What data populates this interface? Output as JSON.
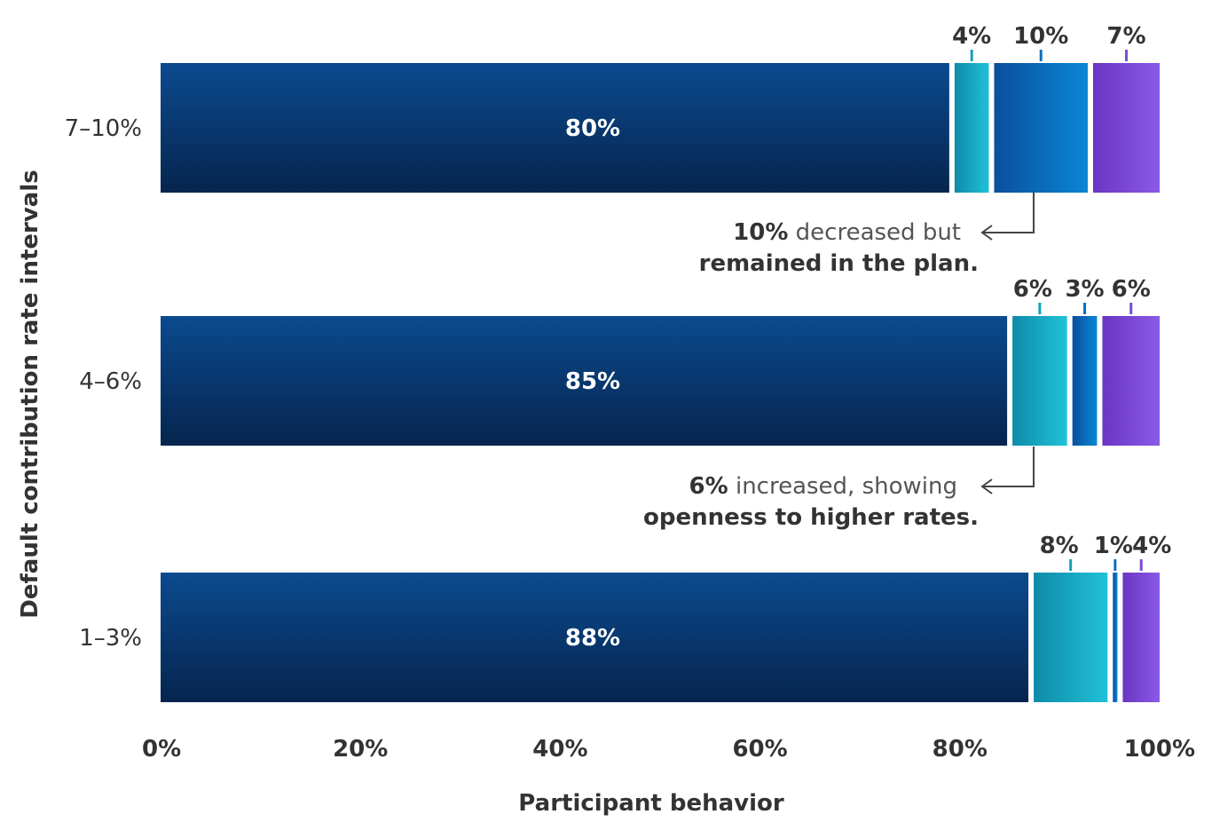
{
  "chart_data": {
    "type": "bar",
    "orientation": "horizontal",
    "stacked": true,
    "xlabel": "Participant behavior",
    "ylabel": "Default contribution rate intervals",
    "xlim": [
      0,
      100
    ],
    "x_ticks": [
      "0%",
      "20%",
      "40%",
      "60%",
      "80%",
      "100%"
    ],
    "categories": [
      "7–10%",
      "4–6%",
      "1–3%"
    ],
    "series": [
      {
        "values": [
          80,
          85,
          88
        ],
        "color": "#0a3a78"
      },
      {
        "values": [
          4,
          6,
          8
        ],
        "color": "#12a6c0"
      },
      {
        "values": [
          10,
          3,
          1
        ],
        "color": "#0a6fc0"
      },
      {
        "values": [
          7,
          6,
          4
        ],
        "color": "#7a4bd6"
      }
    ],
    "value_labels": [
      [
        "80%",
        "4%",
        "10%",
        "7%"
      ],
      [
        "85%",
        "6%",
        "3%",
        "6%"
      ],
      [
        "88%",
        "8%",
        "1%",
        "4%"
      ]
    ],
    "annotations": [
      {
        "bold": "10%",
        "light": " decreased but",
        "line2": "remained in the plan."
      },
      {
        "bold": "6%",
        "light": " increased, showing",
        "line2": "openness to higher rates."
      }
    ]
  }
}
